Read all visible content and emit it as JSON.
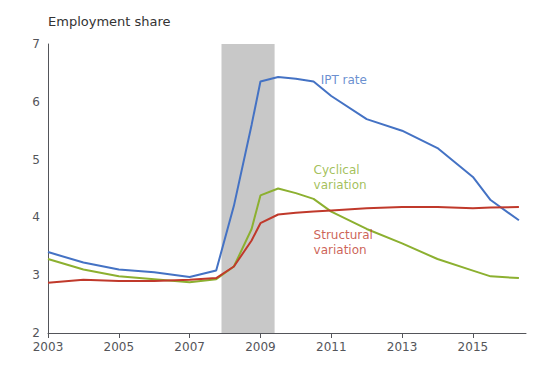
{
  "chart_data": {
    "type": "line",
    "ylabel": "Employment share",
    "xlim": [
      2003,
      2016.5
    ],
    "xticks": [
      2003,
      2005,
      2007,
      2009,
      2011,
      2013,
      2015
    ],
    "ylim": [
      2,
      7
    ],
    "yticks": [
      2,
      3,
      4,
      5,
      6,
      7
    ],
    "grid": false,
    "spans": [
      {
        "start": 2007.9,
        "end": 2009.4,
        "color": "#c8c8c8"
      }
    ],
    "series": [
      {
        "color": "#4472c4",
        "x": [
          2003,
          2004,
          2005,
          2006,
          2007,
          2007.75,
          2008.25,
          2008.75,
          2009.0,
          2009.5,
          2010,
          2010.5,
          2011,
          2012,
          2013,
          2014,
          2015,
          2015.5,
          2016.3
        ],
        "values": [
          3.4,
          3.22,
          3.1,
          3.05,
          2.97,
          3.08,
          4.2,
          5.6,
          6.35,
          6.43,
          6.4,
          6.35,
          6.1,
          5.7,
          5.5,
          5.2,
          4.7,
          4.3,
          3.95
        ]
      },
      {
        "color": "#8cb030",
        "x": [
          2003,
          2004,
          2005,
          2006,
          2007,
          2007.75,
          2008.25,
          2008.75,
          2009.0,
          2009.5,
          2010,
          2010.5,
          2011,
          2012,
          2013,
          2014,
          2015,
          2015.5,
          2016.3
        ],
        "values": [
          3.28,
          3.1,
          2.98,
          2.93,
          2.88,
          2.93,
          3.15,
          3.8,
          4.38,
          4.5,
          4.42,
          4.32,
          4.1,
          3.8,
          3.55,
          3.28,
          3.08,
          2.98,
          2.95
        ]
      },
      {
        "color": "#c0392b",
        "x": [
          2003,
          2004,
          2005,
          2006,
          2007,
          2007.75,
          2008.25,
          2008.75,
          2009.0,
          2009.5,
          2010,
          2010.5,
          2011,
          2012,
          2013,
          2014,
          2015,
          2015.5,
          2016.3
        ],
        "values": [
          2.87,
          2.92,
          2.9,
          2.9,
          2.92,
          2.95,
          3.15,
          3.6,
          3.9,
          4.05,
          4.08,
          4.1,
          4.12,
          4.16,
          4.18,
          4.18,
          4.16,
          4.17,
          4.18
        ]
      }
    ],
    "annotations": [
      {
        "text": "IPT rate",
        "x": 2010.7,
        "y": 6.38,
        "color": "#4472c4"
      },
      {
        "text": "Cyclical\nvariation",
        "x": 2010.5,
        "y": 4.95,
        "color": "#8cb030"
      },
      {
        "text": "Structural\nvariation",
        "x": 2010.5,
        "y": 3.82,
        "color": "#c0392b"
      }
    ]
  }
}
